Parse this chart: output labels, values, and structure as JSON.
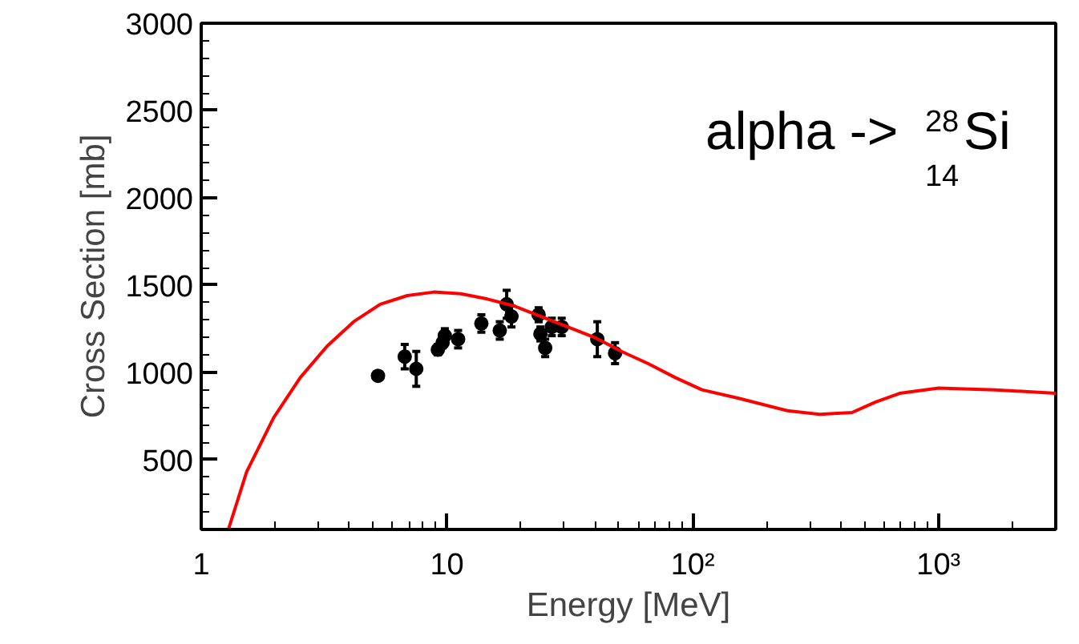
{
  "chart_data": {
    "type": "scatter",
    "xlabel": "Energy [MeV]",
    "ylabel": "Cross Section [mb]",
    "log": "x",
    "grid": false,
    "marker": "circle",
    "xlim": [
      1,
      3000
    ],
    "xticks": [
      1,
      10,
      {
        "value": 100,
        "label": "10²"
      },
      {
        "value": 1000,
        "label": "10³"
      }
    ],
    "ylim": [
      100,
      3000
    ],
    "yticks": [
      500,
      1000,
      1500,
      2000,
      2500,
      3000
    ],
    "annotations": [
      "alpha -> $^{28}$$_{14}$Si"
    ],
    "series": [
      {
        "color": "#000000",
        "x": [
          5.24,
          6.73,
          7.5,
          9.18,
          9.6,
          9.8,
          11.1,
          13.8,
          16.4,
          17.5,
          18.3,
          23.6,
          24.0,
          25.1,
          26.7,
          29.3,
          40.9,
          48.3
        ],
        "values": [
          980,
          1090,
          1020,
          1130,
          1170,
          1210,
          1190,
          1280,
          1240,
          1390,
          1320,
          1330,
          1220,
          1140,
          1260,
          1260,
          1190,
          1110
        ],
        "errors": [
          20,
          70,
          100,
          30,
          30,
          40,
          50,
          50,
          50,
          80,
          60,
          40,
          40,
          50,
          50,
          50,
          100,
          60
        ]
      },
      {
        "type": "line",
        "marker": "none",
        "color": "#ff0000",
        "x": [
          1.29,
          1.53,
          1.97,
          2.53,
          3.25,
          4.17,
          5.35,
          6.9,
          8.85,
          11.4,
          14.6,
          18.8,
          24.1,
          31,
          39.9,
          51.3,
          65.9,
          84.9,
          109,
          155,
          243,
          328,
          445,
          555,
          695,
          1000,
          1700,
          3000
        ],
        "values": [
          100,
          430,
          740,
          970,
          1150,
          1290,
          1390,
          1440,
          1460,
          1450,
          1420,
          1380,
          1320,
          1260,
          1200,
          1120,
          1050,
          970,
          900,
          850,
          780,
          760,
          770,
          830,
          880,
          910,
          900,
          880
        ]
      }
    ]
  }
}
